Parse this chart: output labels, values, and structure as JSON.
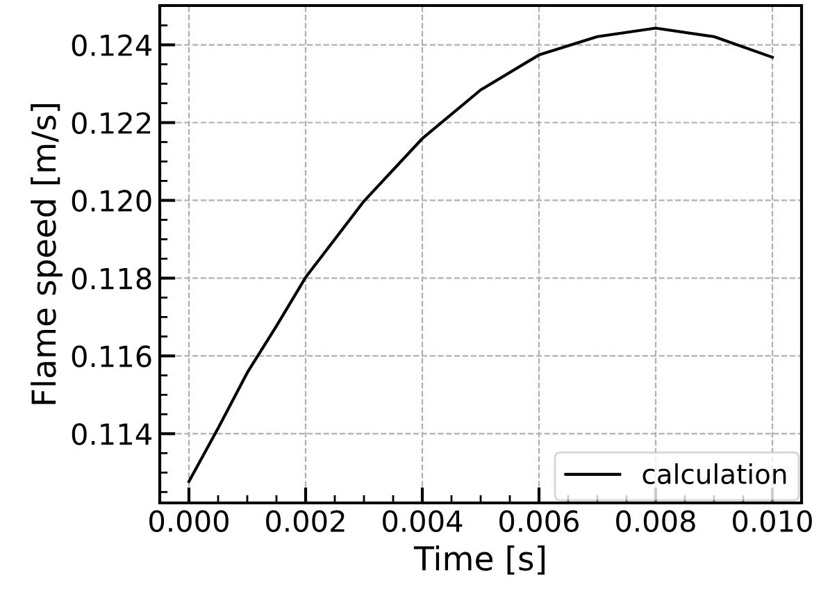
{
  "chart_data": {
    "type": "line",
    "xlabel": "Time [s]",
    "ylabel": "Flame speed [m/s]",
    "x": [
      0.0,
      0.0005,
      0.001,
      0.0015,
      0.002,
      0.003,
      0.004,
      0.005,
      0.006,
      0.007,
      0.008,
      0.009,
      0.01
    ],
    "series": [
      {
        "name": "calculation",
        "color": "#000000",
        "values": [
          0.11277,
          0.11414,
          0.11557,
          0.11677,
          0.11802,
          0.11998,
          0.12159,
          0.12284,
          0.12374,
          0.12421,
          0.12443,
          0.12421,
          0.12368
        ]
      }
    ],
    "xlim": [
      -0.0005,
      0.0105
    ],
    "ylim": [
      0.11222,
      0.12501
    ],
    "xticks": [
      {
        "value": 0.0,
        "label": "0.000"
      },
      0.002,
      0.004,
      0.006,
      0.008,
      {
        "value": 0.01,
        "label": "0.010"
      }
    ],
    "yticks": [
      0.114,
      0.116,
      0.118,
      {
        "value": 0.12,
        "label": "0.120"
      },
      0.122,
      0.124
    ],
    "grid": true,
    "legend": "bottom right",
    "marker": "none",
    "line_style": "solid"
  }
}
